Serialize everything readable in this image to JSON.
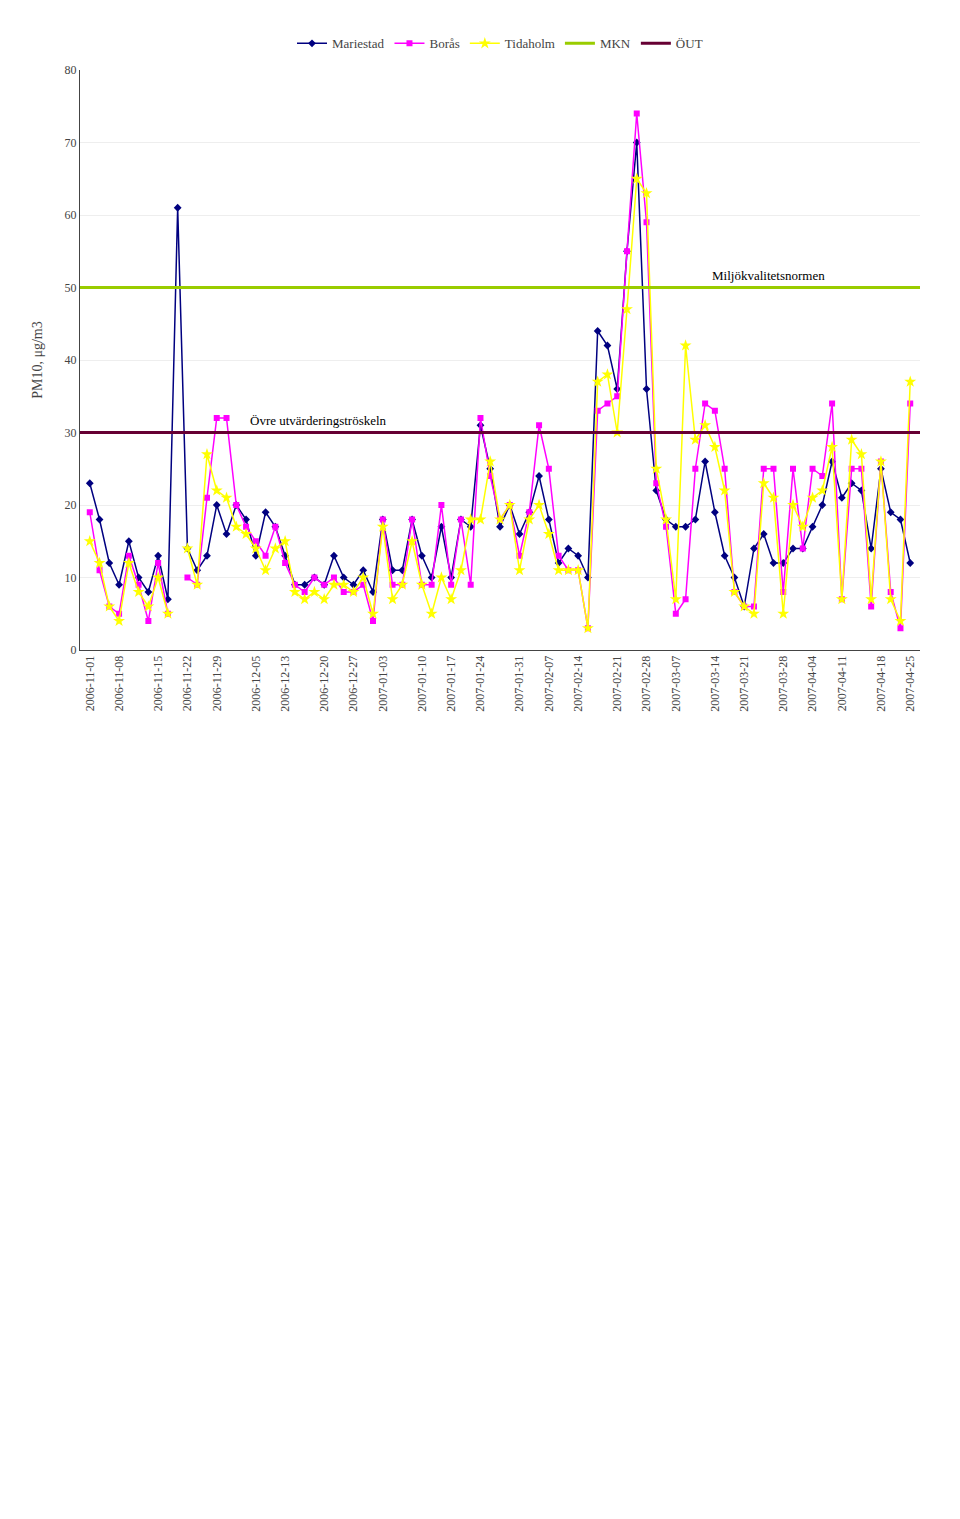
{
  "chart_data": {
    "type": "line",
    "categories": [
      "2006-11-01",
      null,
      null,
      "2006-11-08",
      null,
      null,
      null,
      "2006-11-15",
      null,
      null,
      "2006-11-22",
      null,
      null,
      "2006-11-29",
      null,
      null,
      null,
      "2006-12-05",
      null,
      null,
      "2006-12-13",
      null,
      null,
      null,
      "2006-12-20",
      null,
      null,
      "2006-12-27",
      null,
      null,
      "2007-01-03",
      null,
      null,
      null,
      "2007-01-10",
      null,
      null,
      "2007-01-17",
      null,
      null,
      "2007-01-24",
      null,
      null,
      null,
      "2007-01-31",
      null,
      null,
      "2007-02-07",
      null,
      null,
      "2007-02-14",
      null,
      null,
      null,
      "2007-02-21",
      null,
      null,
      "2007-02-28",
      null,
      null,
      "2007-03-07",
      null,
      null,
      null,
      "2007-03-14",
      null,
      null,
      "2007-03-21",
      null,
      null,
      null,
      "2007-03-28",
      null,
      null,
      "2007-04-04",
      null,
      null,
      "2007-04-11",
      null,
      null,
      null,
      "2007-04-18",
      null,
      null,
      "2007-04-25"
    ],
    "series": [
      {
        "name": "Mariestad",
        "color": "#000080",
        "marker": "diamond",
        "values": [
          23,
          18,
          12,
          9,
          15,
          10,
          8,
          13,
          7,
          61,
          14,
          11,
          13,
          20,
          16,
          20,
          18,
          13,
          19,
          17,
          13,
          9,
          9,
          10,
          9,
          13,
          10,
          9,
          11,
          8,
          18,
          11,
          11,
          18,
          13,
          10,
          17,
          10,
          18,
          17,
          31,
          25,
          17,
          20,
          16,
          19,
          24,
          18,
          12,
          14,
          13,
          10,
          44,
          42,
          36,
          55,
          70,
          36,
          22,
          18,
          17,
          17,
          18,
          26,
          19,
          13,
          10,
          6,
          14,
          16,
          12,
          12,
          14,
          14,
          17,
          20,
          26,
          21,
          23,
          22,
          14,
          25,
          19,
          18,
          12
        ]
      },
      {
        "name": "Borås",
        "color": "#ff00ff",
        "marker": "square",
        "values": [
          19,
          11,
          6,
          5,
          13,
          9,
          4,
          12,
          5,
          null,
          10,
          9,
          21,
          32,
          32,
          20,
          17,
          15,
          13,
          17,
          12,
          9,
          8,
          10,
          9,
          10,
          8,
          8,
          9,
          4,
          18,
          9,
          9,
          18,
          9,
          9,
          20,
          9,
          18,
          9,
          32,
          24,
          18,
          20,
          13,
          19,
          31,
          25,
          13,
          11,
          11,
          3,
          33,
          34,
          35,
          55,
          74,
          59,
          23,
          17,
          5,
          7,
          25,
          34,
          33,
          25,
          8,
          6,
          6,
          25,
          25,
          8,
          25,
          14,
          25,
          24,
          34,
          7,
          25,
          25,
          6,
          26,
          8,
          3,
          34
        ]
      },
      {
        "name": "Tidaholm",
        "color": "#ffff00",
        "marker": "star",
        "values": [
          15,
          12,
          6,
          4,
          12,
          8,
          6,
          10,
          5,
          null,
          14,
          9,
          27,
          22,
          21,
          17,
          16,
          14,
          11,
          14,
          15,
          8,
          7,
          8,
          7,
          9,
          9,
          8,
          10,
          5,
          17,
          7,
          9,
          15,
          9,
          5,
          10,
          7,
          11,
          18,
          18,
          26,
          18,
          20,
          11,
          18,
          20,
          16,
          11,
          11,
          11,
          3,
          37,
          38,
          30,
          47,
          65,
          63,
          25,
          18,
          7,
          42,
          29,
          31,
          28,
          22,
          8,
          6,
          5,
          23,
          21,
          5,
          20,
          17,
          21,
          22,
          28,
          7,
          29,
          27,
          7,
          26,
          7,
          4,
          37
        ]
      }
    ],
    "reference_lines": [
      {
        "name": "MKN",
        "value": 50,
        "color": "#99cc00",
        "label": "Miljökvalitetsnormen"
      },
      {
        "name": "ÖUT",
        "value": 30,
        "color": "#660033",
        "label": "Övre utvärderingströskeln"
      }
    ],
    "ylabel": "PM10, μg/m3",
    "ylim": [
      0,
      80
    ],
    "yticks": [
      0,
      10,
      20,
      30,
      40,
      50,
      60,
      70,
      80
    ],
    "grid": true,
    "legend": "top"
  }
}
